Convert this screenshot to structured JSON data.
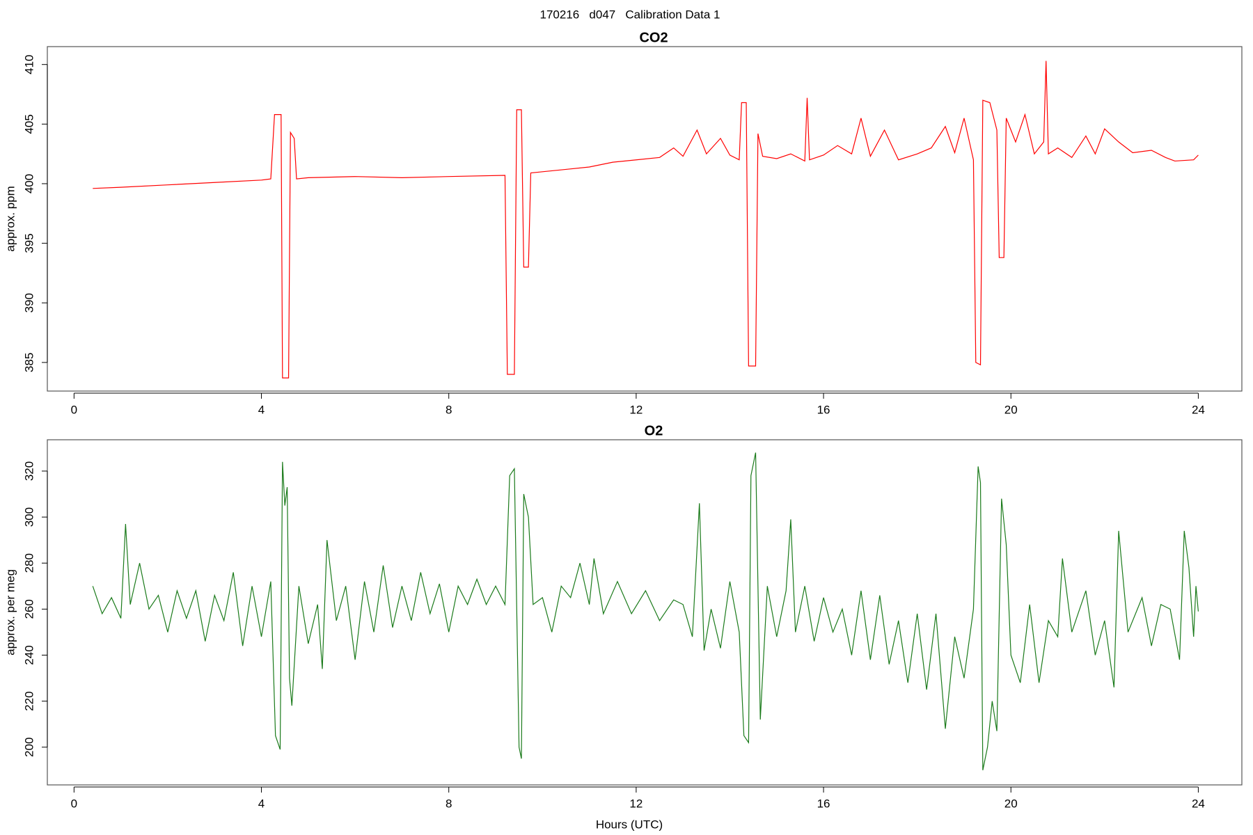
{
  "title": "170216   d047   Calibration Data 1",
  "chart_data": [
    {
      "type": "line",
      "title": "CO2",
      "ylabel": "approx. ppm",
      "color": "#ff0000",
      "xlim": [
        -0.57,
        24.93
      ],
      "xticks": [
        0,
        4,
        8,
        12,
        16,
        20,
        24
      ],
      "ylim": [
        382.6,
        411.5
      ],
      "yticks": [
        385,
        390,
        395,
        400,
        405,
        410
      ],
      "x": [
        0.4,
        1,
        2,
        3,
        4,
        4.2,
        4.28,
        4.42,
        4.45,
        4.58,
        4.62,
        4.7,
        4.75,
        5,
        6,
        7,
        8,
        9.2,
        9.25,
        9.4,
        9.45,
        9.55,
        9.6,
        9.7,
        9.75,
        10,
        10.5,
        11,
        11.5,
        12,
        12.5,
        12.8,
        13,
        13.3,
        13.5,
        13.8,
        14,
        14.2,
        14.25,
        14.35,
        14.4,
        14.55,
        14.6,
        14.7,
        15,
        15.3,
        15.6,
        15.65,
        15.7,
        16,
        16.3,
        16.6,
        16.8,
        17,
        17.3,
        17.6,
        18,
        18.3,
        18.6,
        18.8,
        19,
        19.2,
        19.25,
        19.35,
        19.4,
        19.55,
        19.7,
        19.75,
        19.85,
        19.9,
        20.1,
        20.3,
        20.5,
        20.7,
        20.75,
        20.8,
        21,
        21.3,
        21.6,
        21.8,
        22,
        22.3,
        22.6,
        23,
        23.3,
        23.5,
        23.9,
        24
      ],
      "values": [
        399.6,
        399.7,
        399.9,
        400.1,
        400.3,
        400.4,
        405.8,
        405.8,
        383.7,
        383.7,
        404.3,
        403.8,
        400.4,
        400.5,
        400.6,
        400.5,
        400.6,
        400.7,
        384.0,
        384.0,
        406.2,
        406.2,
        393.0,
        393.0,
        400.9,
        401.0,
        401.2,
        401.4,
        401.8,
        402.0,
        402.2,
        403.0,
        402.3,
        404.5,
        402.5,
        403.8,
        402.4,
        402.0,
        406.8,
        406.8,
        384.7,
        384.7,
        404.2,
        402.3,
        402.1,
        402.5,
        401.9,
        407.2,
        402.0,
        402.4,
        403.2,
        402.5,
        405.5,
        402.3,
        404.5,
        402.0,
        402.5,
        403.0,
        404.8,
        402.6,
        405.5,
        402.0,
        385.0,
        384.8,
        407.0,
        406.8,
        404.5,
        393.8,
        393.8,
        405.5,
        403.5,
        405.8,
        402.5,
        403.5,
        410.3,
        402.5,
        403.0,
        402.2,
        404.0,
        402.5,
        404.6,
        403.5,
        402.6,
        402.8,
        402.2,
        401.9,
        402.0,
        402.4
      ]
    },
    {
      "type": "line",
      "title": "O2",
      "ylabel": "approx. per meg",
      "xlabel": "Hours (UTC)",
      "color": "#1a7a1a",
      "xlim": [
        -0.57,
        24.93
      ],
      "xticks": [
        0,
        4,
        8,
        12,
        16,
        20,
        24
      ],
      "ylim": [
        183.6,
        333.6
      ],
      "yticks": [
        200,
        220,
        240,
        260,
        280,
        300,
        320
      ],
      "x": [
        0.4,
        0.6,
        0.8,
        1.0,
        1.1,
        1.2,
        1.4,
        1.6,
        1.8,
        2.0,
        2.2,
        2.4,
        2.6,
        2.8,
        3.0,
        3.2,
        3.4,
        3.6,
        3.8,
        4.0,
        4.2,
        4.3,
        4.4,
        4.45,
        4.5,
        4.55,
        4.6,
        4.65,
        4.8,
        5.0,
        5.2,
        5.3,
        5.4,
        5.6,
        5.8,
        6.0,
        6.2,
        6.4,
        6.6,
        6.8,
        7.0,
        7.2,
        7.4,
        7.6,
        7.8,
        8.0,
        8.2,
        8.4,
        8.6,
        8.8,
        9.0,
        9.2,
        9.3,
        9.4,
        9.5,
        9.55,
        9.6,
        9.7,
        9.8,
        10.0,
        10.2,
        10.4,
        10.6,
        10.8,
        11.0,
        11.1,
        11.3,
        11.6,
        11.9,
        12.2,
        12.5,
        12.8,
        13.0,
        13.2,
        13.35,
        13.45,
        13.6,
        13.8,
        14.0,
        14.2,
        14.3,
        14.4,
        14.45,
        14.55,
        14.65,
        14.8,
        15.0,
        15.2,
        15.3,
        15.4,
        15.6,
        15.8,
        16.0,
        16.2,
        16.4,
        16.6,
        16.8,
        17.0,
        17.2,
        17.4,
        17.6,
        17.8,
        18.0,
        18.2,
        18.4,
        18.6,
        18.8,
        19.0,
        19.2,
        19.3,
        19.35,
        19.4,
        19.5,
        19.6,
        19.7,
        19.8,
        19.9,
        20.0,
        20.2,
        20.4,
        20.6,
        20.8,
        21.0,
        21.1,
        21.3,
        21.6,
        21.8,
        22.0,
        22.2,
        22.3,
        22.5,
        22.8,
        23.0,
        23.2,
        23.4,
        23.6,
        23.7,
        23.8,
        23.9,
        23.95,
        24.0
      ],
      "values": [
        270,
        258,
        265,
        256,
        297,
        262,
        280,
        260,
        266,
        250,
        268,
        256,
        268,
        246,
        266,
        255,
        276,
        244,
        270,
        248,
        272,
        205,
        199,
        324,
        305,
        313,
        230,
        218,
        270,
        245,
        262,
        234,
        290,
        255,
        270,
        238,
        272,
        250,
        279,
        252,
        270,
        255,
        276,
        258,
        271,
        250,
        270,
        262,
        273,
        262,
        270,
        262,
        318,
        321,
        200,
        195,
        310,
        300,
        262,
        265,
        250,
        270,
        265,
        280,
        262,
        282,
        258,
        272,
        258,
        268,
        255,
        264,
        262,
        248,
        306,
        242,
        260,
        243,
        272,
        250,
        205,
        202,
        318,
        328,
        212,
        270,
        248,
        268,
        299,
        250,
        270,
        246,
        265,
        250,
        260,
        240,
        268,
        238,
        266,
        236,
        255,
        228,
        258,
        225,
        258,
        208,
        248,
        230,
        260,
        322,
        315,
        190,
        200,
        220,
        207,
        308,
        288,
        240,
        228,
        262,
        228,
        255,
        248,
        282,
        250,
        268,
        240,
        255,
        226,
        294,
        250,
        265,
        244,
        262,
        260,
        238,
        294,
        278,
        248,
        270,
        259
      ]
    }
  ]
}
